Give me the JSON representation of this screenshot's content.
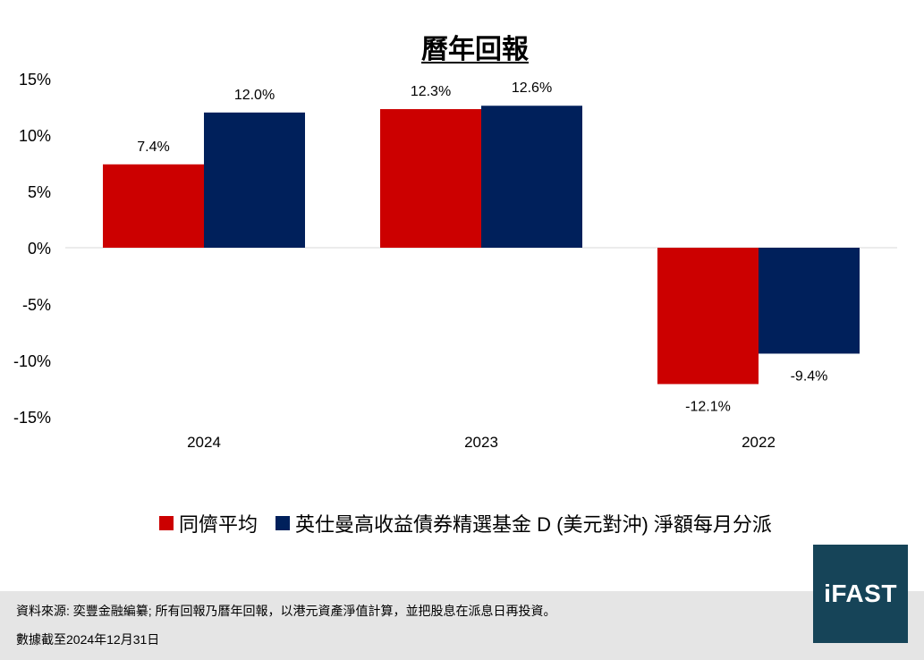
{
  "chart_data": {
    "type": "bar",
    "title": "曆年回報",
    "categories": [
      "2024",
      "2023",
      "2022"
    ],
    "series": [
      {
        "name": "同儕平均",
        "values": [
          7.4,
          12.3,
          -12.1
        ],
        "labels": [
          "7.4%",
          "12.3%",
          "-12.1%"
        ],
        "color": "#cc0000"
      },
      {
        "name": "英仕曼高收益債券精選基金 D (美元對沖) 淨額每月分派",
        "values": [
          12.0,
          12.6,
          -9.4
        ],
        "labels": [
          "12.0%",
          "12.6%",
          "-9.4%"
        ],
        "color": "#00205b"
      }
    ],
    "ylim": [
      -15,
      15
    ],
    "yticks": [
      15,
      10,
      5,
      0,
      -5,
      -10,
      -15
    ],
    "ytick_labels": [
      "15%",
      "10%",
      "5%",
      "0%",
      "-5%",
      "-10%",
      "-15%"
    ],
    "legend_position": "bottom",
    "grid": false
  },
  "footer": {
    "line1": "資料來源: 奕豐金融編纂; 所有回報乃曆年回報，以港元資產淨值計算，並把股息在派息日再投資。",
    "line2": "數據截至2024年12月31日"
  },
  "logo": {
    "text": "iFAST",
    "color": "#164458"
  }
}
